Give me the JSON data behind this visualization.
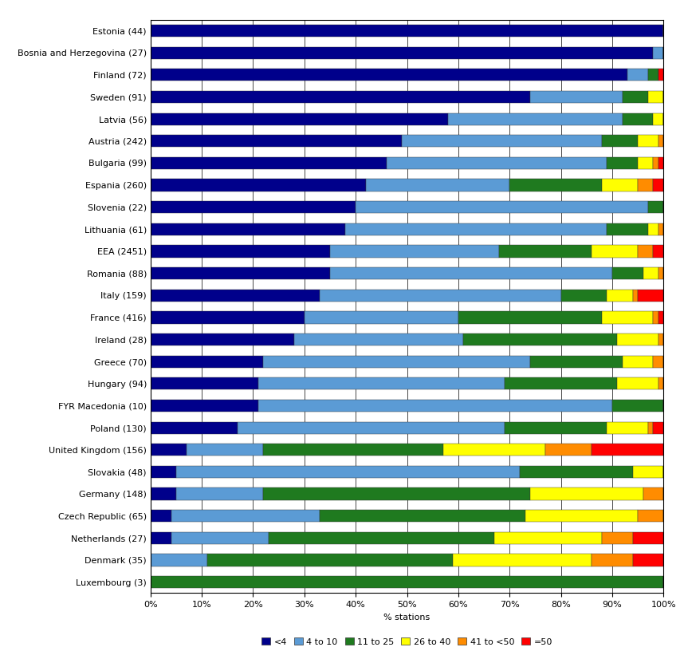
{
  "countries": [
    "Estonia (44)",
    "Bosnia and Herzegovina (27)",
    "Finland (72)",
    "Sweden (91)",
    "Latvia (56)",
    "Austria (242)",
    "Bulgaria (99)",
    "Espania (260)",
    "Slovenia (22)",
    "Lithuania (61)",
    "EEA (2451)",
    "Romania (88)",
    "Italy (159)",
    "France (416)",
    "Ireland (28)",
    "Greece (70)",
    "Hungary (94)",
    "FYR Macedonia (10)",
    "Poland (130)",
    "United Kingdom (156)",
    "Slovakia (48)",
    "Germany (148)",
    "Czech Republic (65)",
    "Netherlands (27)",
    "Denmark (35)",
    "Luxembourg (3)"
  ],
  "data": [
    [
      100,
      0,
      0,
      0,
      0,
      0
    ],
    [
      98,
      2,
      0,
      0,
      0,
      0
    ],
    [
      93,
      4,
      2,
      0,
      0,
      1
    ],
    [
      74,
      18,
      5,
      3,
      0,
      0
    ],
    [
      58,
      34,
      6,
      2,
      0,
      0
    ],
    [
      49,
      39,
      7,
      4,
      1,
      0
    ],
    [
      46,
      43,
      6,
      3,
      1,
      1
    ],
    [
      42,
      28,
      18,
      7,
      3,
      2
    ],
    [
      40,
      57,
      3,
      0,
      0,
      0
    ],
    [
      38,
      51,
      8,
      2,
      1,
      0
    ],
    [
      35,
      33,
      18,
      9,
      3,
      2
    ],
    [
      35,
      55,
      6,
      3,
      1,
      0
    ],
    [
      33,
      47,
      9,
      5,
      1,
      5
    ],
    [
      30,
      30,
      28,
      10,
      1,
      1
    ],
    [
      28,
      33,
      30,
      8,
      1,
      0
    ],
    [
      22,
      52,
      18,
      6,
      2,
      0
    ],
    [
      21,
      48,
      22,
      8,
      1,
      0
    ],
    [
      21,
      69,
      10,
      0,
      0,
      0
    ],
    [
      17,
      52,
      20,
      8,
      1,
      2
    ],
    [
      7,
      15,
      35,
      20,
      9,
      14
    ],
    [
      5,
      67,
      22,
      6,
      0,
      0
    ],
    [
      5,
      17,
      52,
      22,
      4,
      0
    ],
    [
      4,
      29,
      40,
      22,
      5,
      0
    ],
    [
      4,
      19,
      44,
      21,
      6,
      6
    ],
    [
      0,
      11,
      48,
      27,
      8,
      6
    ],
    [
      0,
      0,
      100,
      0,
      0,
      0
    ]
  ],
  "colors": [
    "#00008B",
    "#5B9BD5",
    "#1F7A1F",
    "#FFFF00",
    "#FF8C00",
    "#FF0000"
  ],
  "legend_labels": [
    "<4",
    "4 to 10",
    "11 to 25",
    "26 to 40",
    "41 to <50",
    "=50"
  ],
  "xlabel": "% stations",
  "background_color": "#FFFFFF",
  "grid_color": "#000000",
  "spine_color": "#000000",
  "bar_height": 0.55,
  "tick_fontsize": 8,
  "label_fontsize": 8
}
